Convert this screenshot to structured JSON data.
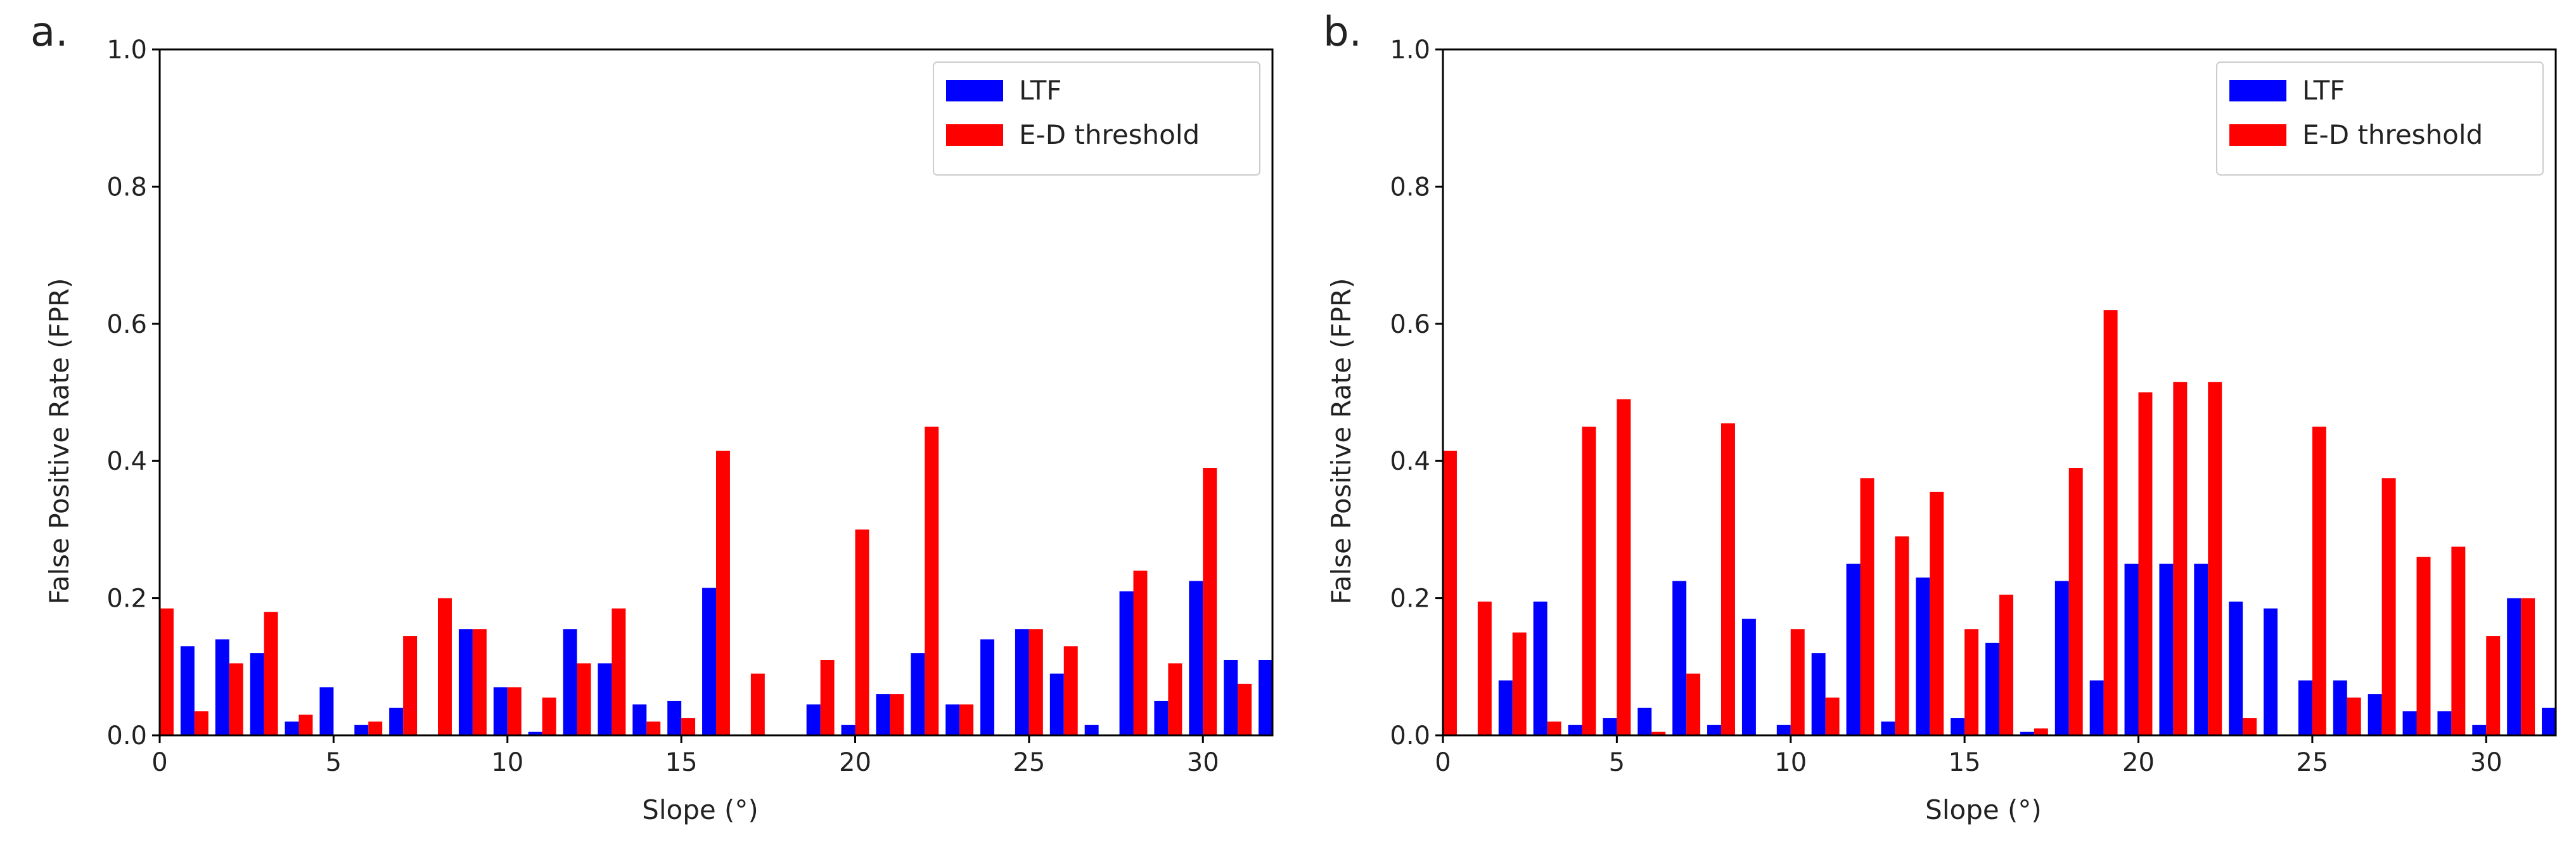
{
  "chart_data": [
    {
      "type": "bar",
      "panel_label": "a.",
      "xlabel": "Slope (°)",
      "ylabel": "False Positive Rate (FPR)",
      "xlim": [
        0,
        32
      ],
      "ylim": [
        0.0,
        1.0
      ],
      "xticks": [
        "0",
        "5",
        "10",
        "15",
        "20",
        "25",
        "30"
      ],
      "yticks": [
        "0.0",
        "0.2",
        "0.4",
        "0.6",
        "0.8",
        "1.0"
      ],
      "legend_position": "top-right",
      "categories": [
        0,
        1,
        2,
        3,
        4,
        5,
        6,
        7,
        8,
        9,
        10,
        11,
        12,
        13,
        14,
        15,
        16,
        17,
        18,
        19,
        20,
        21,
        22,
        23,
        24,
        25,
        26,
        27,
        28,
        29,
        30,
        31,
        32
      ],
      "series": [
        {
          "name": "LTF",
          "color": "#0000ff",
          "values": [
            0,
            0.13,
            0.14,
            0.12,
            0.02,
            0.07,
            0.015,
            0.04,
            0,
            0.155,
            0.07,
            0.005,
            0.155,
            0.105,
            0.045,
            0.05,
            0.215,
            0,
            0,
            0.045,
            0.015,
            0.06,
            0.12,
            0.045,
            0.14,
            0.155,
            0.09,
            0.015,
            0.21,
            0.05,
            0.225,
            0.11,
            0.11
          ]
        },
        {
          "name": "E-D threshold",
          "color": "#ff0000",
          "values": [
            0.185,
            0.035,
            0.105,
            0.18,
            0.03,
            0,
            0.02,
            0.145,
            0.2,
            0.155,
            0.07,
            0.055,
            0.105,
            0.185,
            0.02,
            0.025,
            0.415,
            0.09,
            0,
            0.11,
            0.3,
            0.06,
            0.45,
            0.045,
            0,
            0.155,
            0.13,
            0,
            0.24,
            0.105,
            0.39,
            0.075,
            0
          ]
        }
      ]
    },
    {
      "type": "bar",
      "panel_label": "b.",
      "xlabel": "Slope (°)",
      "ylabel": "False Positive Rate (FPR)",
      "xlim": [
        0,
        32
      ],
      "ylim": [
        0.0,
        1.0
      ],
      "xticks": [
        "0",
        "5",
        "10",
        "15",
        "20",
        "25",
        "30"
      ],
      "yticks": [
        "0.0",
        "0.2",
        "0.4",
        "0.6",
        "0.8",
        "1.0"
      ],
      "legend_position": "top-right",
      "categories": [
        0,
        1,
        2,
        3,
        4,
        5,
        6,
        7,
        8,
        9,
        10,
        11,
        12,
        13,
        14,
        15,
        16,
        17,
        18,
        19,
        20,
        21,
        22,
        23,
        24,
        25,
        26,
        27,
        28,
        29,
        30,
        31,
        32
      ],
      "series": [
        {
          "name": "LTF",
          "color": "#0000ff",
          "values": [
            0,
            0,
            0.08,
            0.195,
            0.015,
            0.025,
            0.04,
            0.225,
            0.015,
            0.17,
            0.015,
            0.12,
            0.25,
            0.02,
            0.23,
            0.025,
            0.135,
            0.005,
            0.225,
            0.08,
            0.25,
            0.25,
            0.25,
            0.195,
            0.185,
            0.08,
            0.08,
            0.06,
            0.035,
            0.035,
            0.015,
            0.2,
            0.04
          ]
        },
        {
          "name": "E-D threshold",
          "color": "#ff0000",
          "values": [
            0.415,
            0.195,
            0.15,
            0.02,
            0.45,
            0.49,
            0.005,
            0.09,
            0.455,
            0,
            0.155,
            0.055,
            0.375,
            0.29,
            0.355,
            0.155,
            0.205,
            0.01,
            0.39,
            0.62,
            0.5,
            0.515,
            0.515,
            0.025,
            0,
            0.45,
            0.055,
            0.375,
            0.26,
            0.275,
            0.145,
            0.2,
            0
          ]
        }
      ]
    }
  ]
}
